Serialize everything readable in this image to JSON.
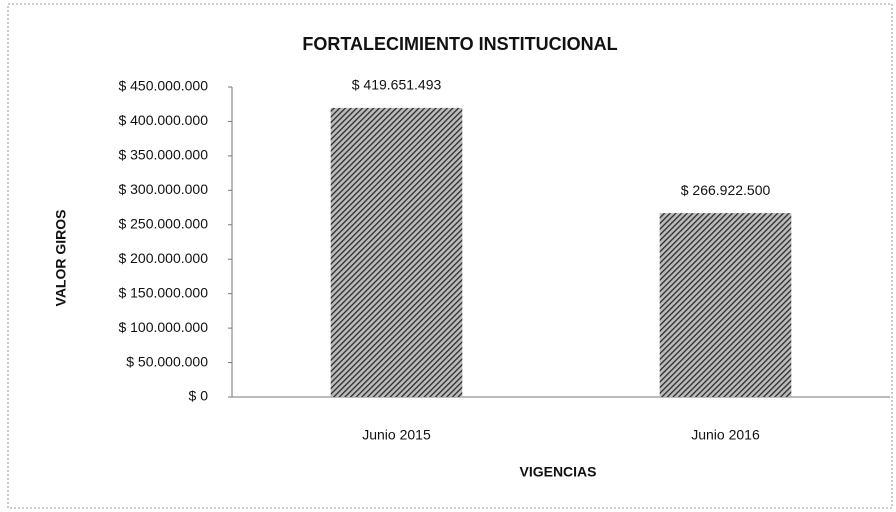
{
  "chart_data": {
    "type": "bar",
    "title": "FORTALECIMIENTO INSTITUCIONAL",
    "xlabel": "VIGENCIAS",
    "ylabel": "VALOR GIROS",
    "categories": [
      "Junio 2015",
      "Junio 2016"
    ],
    "values": [
      419651493,
      266922500
    ],
    "value_labels": [
      "$ 419.651.493",
      "$ 266.922.500"
    ],
    "color": "#2a2a2a",
    "ylim": [
      0,
      450000000
    ],
    "yticks": [
      {
        "value": 0,
        "label": "$ 0"
      },
      {
        "value": 50000000,
        "label": "$ 50.000.000"
      },
      {
        "value": 100000000,
        "label": "$ 100.000.000"
      },
      {
        "value": 150000000,
        "label": "$ 150.000.000"
      },
      {
        "value": 200000000,
        "label": "$ 200.000.000"
      },
      {
        "value": 250000000,
        "label": "$ 250.000.000"
      },
      {
        "value": 300000000,
        "label": "$ 300.000.000"
      },
      {
        "value": 350000000,
        "label": "$ 350.000.000"
      },
      {
        "value": 400000000,
        "label": "$ 400.000.000"
      },
      {
        "value": 450000000,
        "label": "$ 450.000.000"
      }
    ],
    "grid": false
  }
}
